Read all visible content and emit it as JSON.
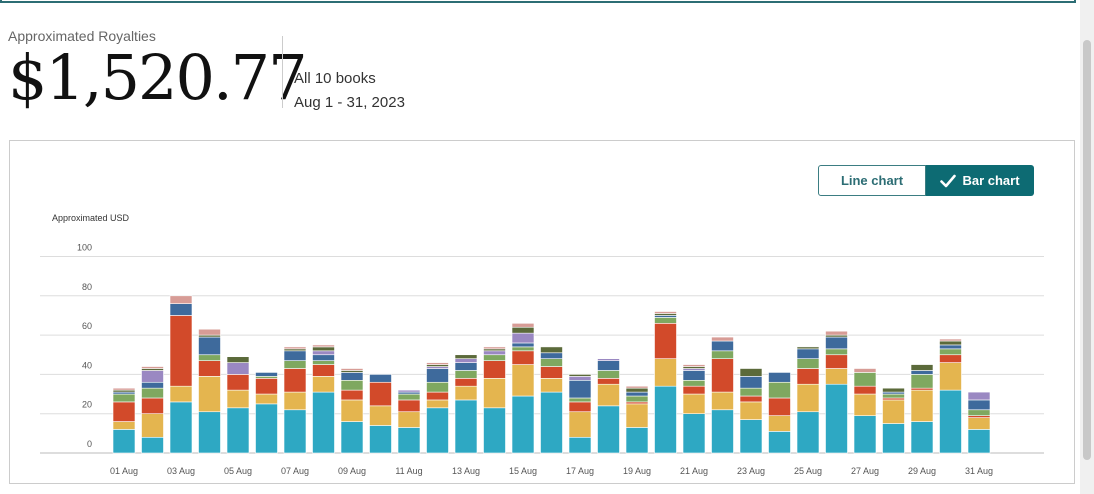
{
  "header": {
    "label": "Approximated Royalties",
    "amount": "$1,520.77",
    "books": "All 10 books",
    "range": "Aug 1 - 31, 2023"
  },
  "toggle": {
    "line_label": "Line chart",
    "bar_label": "Bar chart"
  },
  "colors": {
    "accent": "#0d6b73",
    "series": [
      "#2ea8c3",
      "#e4b54f",
      "#d24a2a",
      "#7fa860",
      "#3e6a9c",
      "#9a88c2",
      "#5b6a3a",
      "#d79c96"
    ]
  },
  "chart_data": {
    "type": "bar",
    "stacked": true,
    "ylabel": "Approximated USD",
    "ylim": [
      0,
      100
    ],
    "yticks": [
      0,
      20,
      40,
      60,
      80,
      100
    ],
    "grid": true,
    "x_tick_labels": [
      "01 Aug",
      "03 Aug",
      "05 Aug",
      "07 Aug",
      "09 Aug",
      "11 Aug",
      "13 Aug",
      "15 Aug",
      "17 Aug",
      "19 Aug",
      "21 Aug",
      "23 Aug",
      "25 Aug",
      "27 Aug",
      "29 Aug",
      "31 Aug"
    ],
    "categories": [
      "01 Aug",
      "02 Aug",
      "03 Aug",
      "04 Aug",
      "05 Aug",
      "06 Aug",
      "07 Aug",
      "08 Aug",
      "09 Aug",
      "10 Aug",
      "11 Aug",
      "12 Aug",
      "13 Aug",
      "14 Aug",
      "15 Aug",
      "16 Aug",
      "17 Aug",
      "18 Aug",
      "19 Aug",
      "20 Aug",
      "21 Aug",
      "22 Aug",
      "23 Aug",
      "24 Aug",
      "25 Aug",
      "26 Aug",
      "27 Aug",
      "28 Aug",
      "29 Aug",
      "30 Aug",
      "31 Aug"
    ],
    "series": [
      {
        "values": [
          12,
          8,
          26,
          21,
          23,
          25,
          22,
          31,
          16,
          14,
          13,
          23,
          27,
          23,
          29,
          31,
          8,
          24,
          13,
          34,
          20,
          22,
          17,
          11,
          21,
          35,
          19,
          15,
          16,
          32,
          12
        ]
      },
      {
        "values": [
          4,
          12,
          8,
          18,
          9,
          5,
          9,
          8,
          11,
          10,
          8,
          4,
          7,
          15,
          16,
          7,
          13,
          11,
          12,
          14,
          10,
          9,
          9,
          8,
          14,
          8,
          11,
          12,
          16,
          14,
          6
        ]
      },
      {
        "values": [
          10,
          8,
          36,
          8,
          8,
          8,
          12,
          6,
          5,
          12,
          6,
          4,
          4,
          9,
          7,
          6,
          5,
          3,
          1,
          18,
          4,
          17,
          3,
          9,
          8,
          7,
          4,
          1,
          1,
          4,
          1
        ]
      },
      {
        "values": [
          4,
          5,
          0,
          3,
          0,
          1,
          4,
          2,
          5,
          0,
          3,
          5,
          4,
          3,
          2,
          4,
          2,
          4,
          3,
          3,
          3,
          4,
          4,
          8,
          5,
          3,
          7,
          2,
          7,
          3,
          3
        ]
      },
      {
        "values": [
          1,
          3,
          6,
          9,
          0,
          2,
          5,
          3,
          4,
          4,
          1,
          7,
          4,
          0,
          2,
          3,
          9,
          5,
          2,
          1,
          5,
          5,
          6,
          5,
          5,
          6,
          0,
          1,
          2,
          2,
          5
        ]
      },
      {
        "values": [
          0,
          6,
          0,
          0,
          6,
          0,
          0,
          2,
          0,
          0,
          1,
          1,
          2,
          2,
          5,
          0,
          2,
          1,
          0,
          0,
          1,
          0,
          0,
          0,
          0,
          0,
          0,
          0,
          0,
          0,
          4
        ]
      },
      {
        "values": [
          1,
          1,
          0,
          1,
          3,
          0,
          1,
          2,
          1,
          0,
          0,
          1,
          2,
          1,
          3,
          3,
          1,
          0,
          2,
          1,
          1,
          0,
          4,
          0,
          1,
          1,
          0,
          2,
          3,
          2,
          0
        ]
      },
      {
        "values": [
          1,
          1,
          4,
          3,
          0,
          0,
          1,
          1,
          1,
          0,
          0,
          1,
          0,
          1,
          2,
          0,
          0,
          0,
          1,
          1,
          1,
          2,
          0,
          0,
          0,
          2,
          2,
          0,
          0,
          1,
          0
        ]
      }
    ]
  }
}
